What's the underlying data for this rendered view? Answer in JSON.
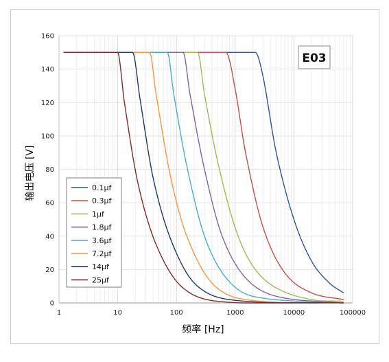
{
  "chart_data": {
    "type": "line",
    "x_scale": "log",
    "xlim": [
      1,
      100000
    ],
    "ylim": [
      0,
      160
    ],
    "grid": true,
    "legend_position": "bottom-left",
    "title": "",
    "xlabel": "频率 [Hz]",
    "ylabel": "输出电压 [V]",
    "stamp": "E03",
    "x_ticks": [
      "1",
      "10",
      "100",
      "1000",
      "10000",
      "100000"
    ],
    "y_ticks": [
      "0",
      "20",
      "40",
      "60",
      "80",
      "100",
      "120",
      "140",
      "160"
    ],
    "series": [
      {
        "name": "0.1μf",
        "color": "#2f5597",
        "x": [
          1.2,
          2200,
          3000,
          5000,
          10000,
          20000,
          40000,
          70000
        ],
        "y": [
          150,
          150,
          135,
          90,
          50,
          25,
          12,
          6
        ]
      },
      {
        "name": "0.3μf",
        "color": "#c0504d",
        "x": [
          1.2,
          700,
          1000,
          1500,
          3000,
          7000,
          20000,
          70000
        ],
        "y": [
          150,
          150,
          128,
          90,
          45,
          18,
          6,
          2
        ]
      },
      {
        "name": "1μf",
        "color": "#9bbb59",
        "x": [
          1.2,
          230,
          300,
          500,
          1000,
          2000,
          5000,
          20000,
          70000
        ],
        "y": [
          150,
          150,
          125,
          85,
          45,
          22,
          9,
          2,
          1
        ]
      },
      {
        "name": "1.8μf",
        "color": "#8064a2",
        "x": [
          1.2,
          130,
          170,
          300,
          600,
          1500,
          5000,
          70000
        ],
        "y": [
          150,
          150,
          125,
          80,
          40,
          15,
          4,
          0
        ]
      },
      {
        "name": "3.6μf",
        "color": "#4bacc6",
        "x": [
          1.2,
          70,
          90,
          150,
          300,
          700,
          2000,
          70000
        ],
        "y": [
          150,
          150,
          125,
          82,
          40,
          15,
          4,
          0
        ]
      },
      {
        "name": "7.2μf",
        "color": "#f79646",
        "x": [
          1.2,
          35,
          45,
          80,
          150,
          400,
          1500,
          70000
        ],
        "y": [
          150,
          150,
          125,
          75,
          40,
          12,
          2,
          0
        ]
      },
      {
        "name": "14μf",
        "color": "#1f3864",
        "x": [
          1.2,
          18,
          24,
          40,
          80,
          200,
          800,
          70000
        ],
        "y": [
          150,
          150,
          122,
          75,
          38,
          12,
          2,
          0
        ]
      },
      {
        "name": "25μf",
        "color": "#7b2c2c",
        "x": [
          1.2,
          10,
          13,
          22,
          45,
          120,
          500,
          70000
        ],
        "y": [
          150,
          150,
          120,
          72,
          35,
          10,
          1,
          0
        ]
      }
    ]
  }
}
